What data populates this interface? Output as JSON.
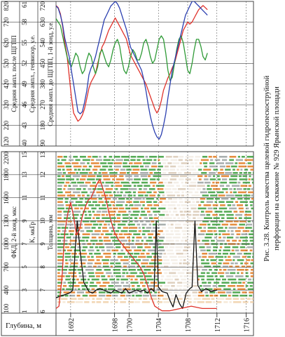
{
  "caption": {
    "line1": "Рис. 3.28. Контроль качества щелевой гидропескоструйной",
    "line2": "перфорации на скважине № 929 Ярынской площади"
  },
  "depth_axis": {
    "label": "Глубина, м",
    "ticks": [
      "1692",
      "1698",
      "1700",
      "1704",
      "1708",
      "1712",
      "1716"
    ]
  },
  "colors": {
    "red": "#e0322b",
    "blue": "#2b3fb0",
    "green": "#2e9a36",
    "black": "#111111",
    "orange": "#e07a1e",
    "vdl_green": "#3a9c3a",
    "grid": "#444444"
  },
  "chart_data": [
    {
      "type": "line",
      "panel": "amplitude",
      "scales": [
        {
          "label": "Средняя ампл. после ЩГПП",
          "ticks": [
            "120",
            "220",
            "320",
            "420",
            "520",
            "620",
            "720",
            "820"
          ],
          "color": "#e0322b"
        },
        {
          "label": "Средняя ампл., гепвизор, у.е.",
          "ticks": [
            "40",
            "43",
            "46",
            "49",
            "52",
            "55",
            "58",
            "61"
          ],
          "color": "#2e9a36"
        },
        {
          "label": "Средняя ампл. до ЩГПП, 1-й зонд, у.е.",
          "ticks": [
            "90",
            "180",
            "270",
            "380",
            "450",
            "540",
            "630",
            "720"
          ],
          "color": "#2b3fb0"
        }
      ],
      "series": [
        {
          "scale": 0,
          "color": "#e0322b",
          "x": [
            800,
            790,
            760,
            700,
            620,
            560,
            460,
            360,
            280,
            260,
            240,
            250,
            270,
            300,
            350,
            400,
            430,
            450,
            470,
            520,
            560,
            600,
            620,
            650,
            680,
            700,
            720,
            740,
            720,
            700,
            680,
            660,
            640,
            600,
            560,
            540,
            520,
            500,
            480,
            460,
            440,
            420,
            390,
            360,
            330,
            300,
            280,
            300,
            340,
            390,
            420,
            450,
            470,
            500,
            520,
            560,
            600,
            640,
            680,
            700,
            720,
            710,
            720,
            740,
            760,
            780,
            790,
            800,
            790,
            780
          ],
          "y": [
            1690.0,
            1690.3,
            1690.6,
            1690.9,
            1691.2,
            1691.5,
            1691.8,
            1692.1,
            1692.4,
            1692.7,
            1693.0,
            1693.3,
            1693.6,
            1693.9,
            1694.2,
            1694.5,
            1694.8,
            1695.1,
            1695.4,
            1695.7,
            1696.0,
            1696.3,
            1696.6,
            1696.9,
            1697.2,
            1697.5,
            1697.8,
            1698.1,
            1698.4,
            1698.7,
            1699.0,
            1699.3,
            1699.6,
            1699.9,
            1700.2,
            1700.5,
            1700.8,
            1701.1,
            1701.4,
            1701.7,
            1702.0,
            1702.3,
            1702.6,
            1702.9,
            1703.2,
            1703.5,
            1703.8,
            1704.1,
            1704.4,
            1704.7,
            1705.0,
            1705.3,
            1705.6,
            1705.9,
            1706.2,
            1706.5,
            1706.8,
            1707.1,
            1707.4,
            1707.7,
            1708.0,
            1708.3,
            1708.6,
            1708.9,
            1709.2,
            1709.5,
            1709.8,
            1710.1,
            1710.4,
            1710.7
          ]
        },
        {
          "scale": 1,
          "color": "#2e9a36",
          "x": [
            58.5,
            58.0,
            57.5,
            56.0,
            54.5,
            53.0,
            52.0,
            51.5,
            52.5,
            53.5,
            53.0,
            51.5,
            50.5,
            51.0,
            52.5,
            53.5,
            53.0,
            51.5,
            50.5,
            51.5,
            53.5,
            54.0,
            53.0,
            52.0,
            51.5,
            52.5,
            54.0,
            55.0,
            55.5,
            54.5,
            52.5,
            51.0,
            50.5,
            51.5,
            53.0,
            54.0,
            53.5,
            52.5,
            52.5,
            53.5,
            55.0,
            55.5,
            54.5,
            53.0,
            52.0,
            52.5,
            54.0,
            55.5,
            56.0,
            55.5,
            53.5,
            51.0,
            49.5,
            50.0,
            52.0,
            54.0,
            55.5,
            56.0,
            55.0,
            53.0,
            51.0,
            50.5,
            52.0,
            54.0,
            55.5,
            55.5,
            54.5,
            53.0,
            52.5,
            53.5
          ],
          "y": [
            1690.0,
            1690.3,
            1690.6,
            1690.9,
            1691.2,
            1691.5,
            1691.8,
            1692.1,
            1692.4,
            1692.7,
            1693.0,
            1693.3,
            1693.6,
            1693.9,
            1694.2,
            1694.5,
            1694.8,
            1695.1,
            1695.4,
            1695.7,
            1696.0,
            1696.3,
            1696.6,
            1696.9,
            1697.2,
            1697.5,
            1697.8,
            1698.1,
            1698.4,
            1698.7,
            1699.0,
            1699.3,
            1699.6,
            1699.9,
            1700.2,
            1700.5,
            1700.8,
            1701.1,
            1701.4,
            1701.7,
            1702.0,
            1702.3,
            1702.6,
            1702.9,
            1703.2,
            1703.5,
            1703.8,
            1704.1,
            1704.4,
            1704.7,
            1705.0,
            1705.3,
            1705.6,
            1705.9,
            1706.2,
            1706.5,
            1706.8,
            1707.1,
            1707.4,
            1707.7,
            1708.0,
            1708.3,
            1708.6,
            1708.9,
            1709.2,
            1709.5,
            1709.8,
            1710.1,
            1710.4,
            1710.7
          ]
        },
        {
          "scale": 2,
          "color": "#2b3fb0",
          "x": [
            700,
            690,
            660,
            620,
            560,
            520,
            480,
            420,
            360,
            300,
            240,
            230,
            240,
            280,
            330,
            400,
            430,
            450,
            480,
            520,
            560,
            600,
            640,
            660,
            680,
            700,
            710,
            720,
            710,
            690,
            660,
            630,
            600,
            560,
            520,
            500,
            480,
            460,
            440,
            420,
            380,
            330,
            270,
            220,
            180,
            150,
            130,
            120,
            140,
            180,
            230,
            300,
            360,
            420,
            460,
            500,
            540,
            580,
            620,
            660,
            680,
            700,
            720,
            720,
            710,
            700,
            690,
            680,
            670,
            660
          ],
          "y": [
            1690.0,
            1690.3,
            1690.6,
            1690.9,
            1691.2,
            1691.5,
            1691.8,
            1692.1,
            1692.4,
            1692.7,
            1693.0,
            1693.3,
            1693.6,
            1693.9,
            1694.2,
            1694.5,
            1694.8,
            1695.1,
            1695.4,
            1695.7,
            1696.0,
            1696.3,
            1696.6,
            1696.9,
            1697.2,
            1697.5,
            1697.8,
            1698.1,
            1698.4,
            1698.7,
            1699.0,
            1699.3,
            1699.6,
            1699.9,
            1700.2,
            1700.5,
            1700.8,
            1701.1,
            1701.4,
            1701.7,
            1702.0,
            1702.3,
            1702.6,
            1702.9,
            1703.2,
            1703.5,
            1703.8,
            1704.1,
            1704.4,
            1704.7,
            1705.0,
            1705.3,
            1705.6,
            1705.9,
            1706.2,
            1706.5,
            1706.8,
            1707.1,
            1707.4,
            1707.7,
            1708.0,
            1708.3,
            1708.6,
            1708.9,
            1709.2,
            1709.5,
            1709.8,
            1710.1,
            1710.4,
            1710.7
          ]
        }
      ]
    },
    {
      "type": "line",
      "panel": "fkd",
      "scales": [
        {
          "label": "ФКД, 2-й зонд, мкс",
          "ticks": [
            "100",
            "400",
            "700",
            "1000",
            "1300",
            "1600",
            "1800",
            "2200"
          ]
        },
        {
          "label": "K, мкГр",
          "ticks": [
            "1",
            "3",
            "5",
            "7",
            "9",
            "11",
            "13",
            "15"
          ]
        },
        {
          "label": "Толщина, мм",
          "ticks": [
            "6",
            "7",
            "8",
            "9",
            "10",
            "11",
            "12",
            "13"
          ],
          "color": "#e0322b"
        }
      ],
      "series": [
        {
          "scale": 0,
          "color": "#111111",
          "x": [
            300,
            320,
            340,
            360,
            380,
            400,
            900,
            1300,
            900,
            500,
            380,
            360,
            400,
            420,
            400,
            380,
            360,
            400,
            380,
            360,
            420,
            360,
            380,
            400,
            380,
            400,
            360,
            420,
            380,
            1300,
            440,
            380,
            360,
            260,
            180,
            340,
            220,
            160,
            360,
            420,
            440,
            1300,
            460,
            380,
            420,
            380,
            400
          ],
          "y": [
            1690.0,
            1690.6,
            1691.2,
            1691.8,
            1692.1,
            1692.3,
            1692.6,
            1692.9,
            1693.3,
            1693.8,
            1694.5,
            1695.0,
            1695.5,
            1696.0,
            1696.5,
            1697.0,
            1697.5,
            1698.0,
            1698.5,
            1699.0,
            1699.5,
            1700.0,
            1700.5,
            1701.0,
            1701.5,
            1702.0,
            1702.5,
            1703.0,
            1703.4,
            1703.7,
            1704.0,
            1704.5,
            1705.2,
            1705.6,
            1706.0,
            1706.4,
            1706.9,
            1707.3,
            1707.8,
            1708.3,
            1708.6,
            1709.0,
            1709.4,
            1709.9,
            1710.5,
            1711.2,
            1712.0
          ]
        },
        {
          "scale": 2,
          "color": "#e0322b",
          "x": [
            6.2,
            6.3,
            7.5,
            9.5,
            10.3,
            10.8,
            10.2,
            9.4,
            9.6,
            10.2,
            10.6,
            10.9,
            11.0,
            11.3,
            11.6,
            11.8,
            11.4,
            11.0,
            10.4,
            9.9,
            9.5,
            9.2,
            9.0,
            8.8,
            8.6,
            8.4,
            8.2,
            8.0,
            7.7,
            7.2,
            6.7,
            6.3,
            6.2,
            6.1,
            6.1,
            6.2,
            6.3,
            6.2,
            6.2
          ],
          "y": [
            1690.0,
            1690.4,
            1690.8,
            1691.2,
            1691.6,
            1692.0,
            1692.4,
            1692.8,
            1693.2,
            1693.6,
            1694.0,
            1694.4,
            1694.8,
            1695.2,
            1695.6,
            1696.0,
            1696.4,
            1696.8,
            1697.2,
            1697.6,
            1698.0,
            1698.5,
            1699.0,
            1699.5,
            1700.0,
            1700.5,
            1701.0,
            1701.5,
            1702.0,
            1702.5,
            1703.0,
            1703.5,
            1704.0,
            1704.5,
            1705.5,
            1707.0,
            1708.5,
            1710.0,
            1712.0
          ]
        }
      ]
    }
  ]
}
